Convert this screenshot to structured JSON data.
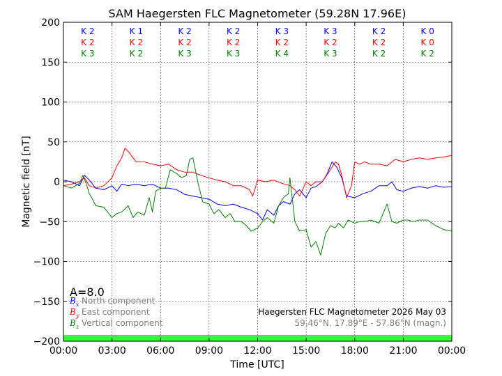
{
  "chart_data": {
    "type": "line",
    "title": "SAM Haegersten FLC Magnetometer (59.28N 17.96E)",
    "xlabel": "Time [UTC]",
    "ylabel": "Magnetic field [nT]",
    "xlim": [
      0,
      24
    ],
    "ylim": [
      -200,
      200
    ],
    "x_ticks": [
      0,
      3,
      6,
      9,
      12,
      15,
      18,
      21,
      24
    ],
    "x_tick_labels": [
      "00:00",
      "03:00",
      "06:00",
      "09:00",
      "12:00",
      "15:00",
      "18:00",
      "21:00",
      "00:00"
    ],
    "y_ticks": [
      -200,
      -150,
      -100,
      -50,
      0,
      50,
      100,
      150,
      200
    ],
    "y_tick_labels": [
      "−200",
      "−150",
      "−100",
      "−50",
      "0",
      "50",
      "100",
      "150",
      "200"
    ],
    "grid": true,
    "k_index": {
      "x_positions": [
        1.5,
        4.5,
        7.5,
        10.5,
        13.5,
        16.5,
        19.5,
        22.5
      ],
      "rows": [
        {
          "color": "#0000ff",
          "labels": [
            "K 2",
            "K 1",
            "K 2",
            "K 2",
            "K 3",
            "K 3",
            "K 2",
            "K 0"
          ]
        },
        {
          "color": "#ff0000",
          "labels": [
            "K 2",
            "K 2",
            "K 2",
            "K 2",
            "K 2",
            "K 2",
            "K 2",
            "K 0"
          ]
        },
        {
          "color": "#008000",
          "labels": [
            "K 3",
            "K 2",
            "K 3",
            "K 3",
            "K 4",
            "K 3",
            "K 2",
            "K 2"
          ]
        }
      ]
    },
    "a_index": "A=8.0",
    "legend": {
      "placement": "bottom-left",
      "entries": [
        {
          "symbol": "B",
          "sub": "x",
          "label": "North component",
          "color": "#0000ff"
        },
        {
          "symbol": "B",
          "sub": "y",
          "label": "East component",
          "color": "#ff0000"
        },
        {
          "symbol": "B",
          "sub": "z",
          "label": "Vertical component",
          "color": "#008000"
        }
      ]
    },
    "info": {
      "line1": "Haegersten FLC Magnetometer 2026 May 03",
      "line2": "59.46°N, 17.89°E - 57.86°N (magn.)"
    },
    "activity_bar_color": "#33ff33",
    "series": [
      {
        "name": "Bx",
        "color": "#0000ff",
        "x": [
          0,
          0.5,
          1,
          1.3,
          1.6,
          2,
          2.5,
          3,
          3.3,
          3.6,
          4,
          4.5,
          5,
          5.5,
          6,
          6.5,
          7,
          7.5,
          8,
          8.5,
          9,
          9.5,
          10,
          10.5,
          11,
          11.5,
          12,
          12.3,
          12.6,
          13,
          13.3,
          13.6,
          14,
          14.3,
          14.6,
          15,
          15.3,
          15.6,
          16,
          16.3,
          16.6,
          16.9,
          17.2,
          17.5,
          18,
          18.5,
          19,
          19.5,
          20,
          20.3,
          20.6,
          21,
          21.5,
          22,
          22.5,
          23,
          23.5,
          24
        ],
        "y": [
          2,
          0,
          -5,
          8,
          2,
          -8,
          -10,
          -5,
          -12,
          -3,
          -5,
          -3,
          -5,
          -3,
          -8,
          -8,
          -10,
          -16,
          -18,
          -20,
          -22,
          -28,
          -30,
          -28,
          -32,
          -35,
          -40,
          -48,
          -35,
          -42,
          -30,
          -25,
          -28,
          -15,
          -10,
          -20,
          -8,
          -6,
          0,
          10,
          25,
          18,
          5,
          -18,
          -20,
          -15,
          -12,
          -5,
          -5,
          0,
          -10,
          -12,
          -8,
          -6,
          -8,
          -5,
          -7,
          -6
        ]
      },
      {
        "name": "By",
        "color": "#ff0000",
        "x": [
          0,
          0.5,
          1,
          1.3,
          1.6,
          2,
          2.5,
          3,
          3.3,
          3.6,
          3.8,
          4,
          4.5,
          5,
          5.5,
          6,
          6.5,
          7,
          7.5,
          8,
          8.5,
          9,
          9.5,
          10,
          10.5,
          11,
          11.5,
          11.7,
          12,
          12.5,
          13,
          13.5,
          14,
          14.3,
          14.6,
          15,
          15.3,
          15.6,
          16,
          16.5,
          16.8,
          17,
          17.2,
          17.5,
          17.8,
          18,
          18.3,
          18.6,
          19,
          19.5,
          20,
          20.5,
          21,
          21.5,
          22,
          22.5,
          23,
          23.5,
          24
        ],
        "y": [
          -5,
          -3,
          0,
          5,
          -5,
          -8,
          -5,
          5,
          20,
          30,
          42,
          38,
          25,
          25,
          22,
          20,
          22,
          15,
          12,
          12,
          8,
          5,
          2,
          0,
          -5,
          -5,
          -10,
          -18,
          2,
          0,
          2,
          -2,
          -5,
          -10,
          -18,
          0,
          -5,
          0,
          0,
          15,
          25,
          22,
          8,
          -20,
          -5,
          25,
          22,
          25,
          22,
          22,
          20,
          28,
          25,
          28,
          30,
          28,
          30,
          31,
          33
        ]
      },
      {
        "name": "Bz",
        "color": "#008000",
        "x": [
          0,
          0.5,
          1,
          1.2,
          1.4,
          1.6,
          1.8,
          2,
          2.5,
          3,
          3.3,
          3.6,
          4,
          4.3,
          4.6,
          5,
          5.3,
          5.5,
          5.7,
          6,
          6.3,
          6.6,
          7,
          7.3,
          7.6,
          7.8,
          8,
          8.3,
          8.6,
          9,
          9.3,
          9.6,
          10,
          10.3,
          10.6,
          11,
          11.3,
          11.6,
          12,
          12.3,
          12.6,
          13,
          13.3,
          13.6,
          13.9,
          14,
          14.3,
          14.6,
          15,
          15.3,
          15.6,
          15.9,
          16.2,
          16.5,
          16.8,
          17,
          17.3,
          17.6,
          18,
          18.3,
          18.6,
          19,
          19.5,
          20,
          20.3,
          20.6,
          21,
          21.3,
          21.6,
          22,
          22.5,
          23,
          23.5,
          24
        ],
        "y": [
          -5,
          -8,
          -2,
          8,
          -2,
          -15,
          -22,
          -30,
          -32,
          -45,
          -40,
          -38,
          -30,
          -45,
          -38,
          -42,
          -20,
          -38,
          -12,
          -8,
          -8,
          15,
          10,
          5,
          8,
          28,
          30,
          0,
          -25,
          -28,
          -40,
          -35,
          -45,
          -40,
          -50,
          -50,
          -55,
          -62,
          -58,
          -50,
          -45,
          -52,
          -30,
          -20,
          -15,
          5,
          -50,
          -62,
          -60,
          -82,
          -75,
          -92,
          -65,
          -55,
          -58,
          -52,
          -58,
          -48,
          -52,
          -50,
          -50,
          -48,
          -52,
          -28,
          -50,
          -52,
          -48,
          -48,
          -50,
          -48,
          -48,
          -55,
          -60,
          -62
        ]
      }
    ]
  }
}
